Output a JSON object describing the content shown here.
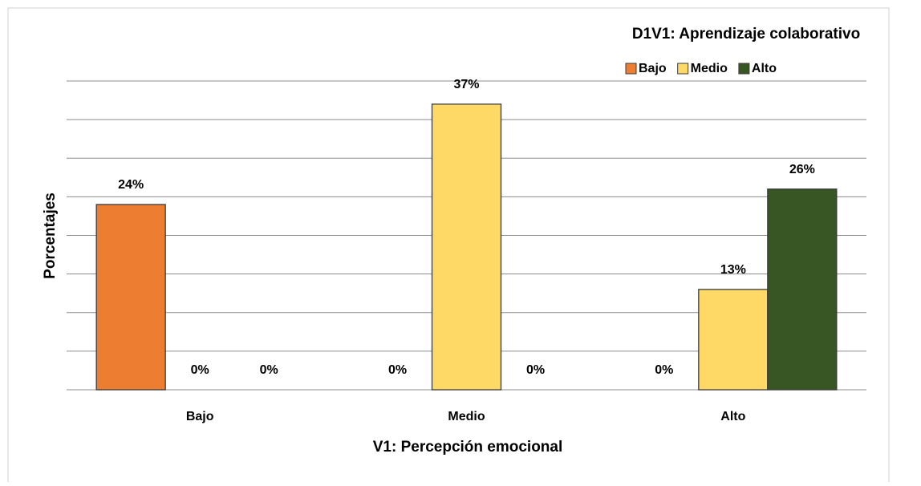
{
  "chart_data": {
    "type": "bar",
    "title": "D1V1: Aprendizaje colaborativo",
    "x_label": "V1: Percepción emocional",
    "y_label": "Porcentajes",
    "categories": [
      "Bajo",
      "Medio",
      "Alto"
    ],
    "series": [
      {
        "name": "Bajo",
        "color": "#ed7d31",
        "values": [
          24,
          0,
          0
        ],
        "value_labels": [
          "24%",
          "0%",
          "0%"
        ]
      },
      {
        "name": "Medio",
        "color": "#ffd966",
        "values": [
          0,
          37,
          13
        ],
        "value_labels": [
          "0%",
          "37%",
          "13%"
        ]
      },
      {
        "name": "Alto",
        "color": "#375623",
        "values": [
          0,
          0,
          26
        ],
        "value_labels": [
          "0%",
          "0%",
          "26%"
        ]
      }
    ],
    "ylim": [
      0,
      40
    ],
    "yticks": [
      0,
      5,
      10,
      15,
      20,
      25,
      30,
      35,
      40
    ],
    "grid": true
  }
}
